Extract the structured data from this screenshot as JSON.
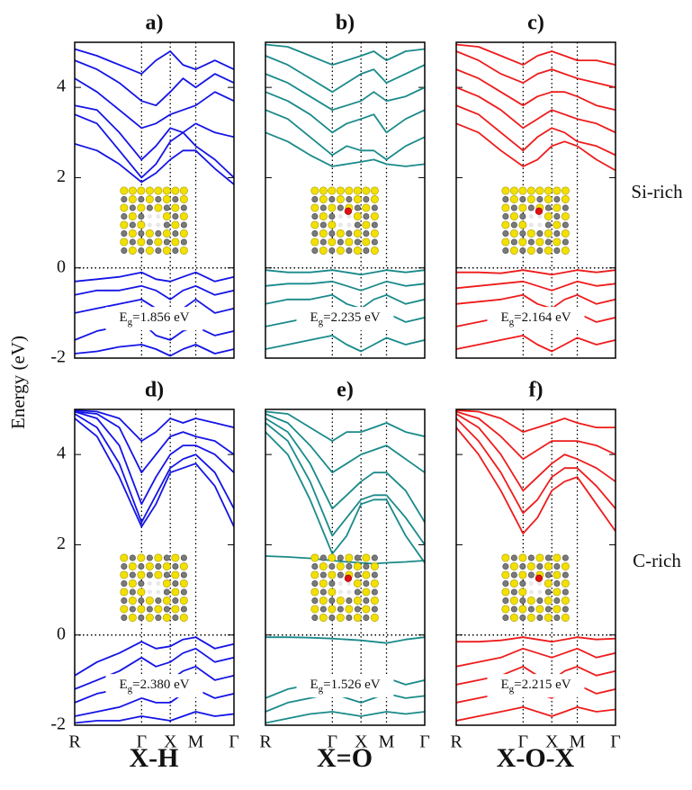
{
  "ylabel": "Energy (eV)",
  "row_labels": [
    "Si-rich",
    "C-rich"
  ],
  "column_labels": [
    "X-H",
    "X=O",
    "X-O-X"
  ],
  "chart_data": [
    {
      "type": "line",
      "title": "a)",
      "color": "#1414e6",
      "x": [
        0,
        0.14,
        0.28,
        0.42,
        0.51,
        0.6,
        0.68,
        0.76,
        0.88,
        1
      ],
      "xlim": [
        0,
        1
      ],
      "xticks": [
        0,
        0.42,
        0.6,
        0.76,
        1
      ],
      "ylim": [
        -2,
        5
      ],
      "yticks": [
        -2,
        0,
        2,
        4
      ],
      "show_ytick_labels": true,
      "hline": 0,
      "inset_oxygen": false,
      "gap_symbol": "E",
      "gap_sub": "g",
      "gap_text": "=1.856 eV",
      "series": [
        {
          "values": [
            2.75,
            2.6,
            2.3,
            1.9,
            2.1,
            2.4,
            2.6,
            2.6,
            2.2,
            1.85
          ]
        },
        {
          "values": [
            3.4,
            3.2,
            2.6,
            2.0,
            2.3,
            2.8,
            3.0,
            2.7,
            2.4,
            2.0
          ]
        },
        {
          "values": [
            3.6,
            3.5,
            3.0,
            2.4,
            2.7,
            3.1,
            3.0,
            3.2,
            3.0,
            2.9
          ]
        },
        {
          "values": [
            4.2,
            3.9,
            3.5,
            3.1,
            3.2,
            3.4,
            3.5,
            3.6,
            3.9,
            3.7
          ]
        },
        {
          "values": [
            4.6,
            4.4,
            4.1,
            3.7,
            3.6,
            3.9,
            4.2,
            4.0,
            4.3,
            4.1
          ]
        },
        {
          "values": [
            4.85,
            4.7,
            4.5,
            4.3,
            4.6,
            4.8,
            4.5,
            4.4,
            4.6,
            4.4
          ]
        },
        {
          "values": [
            -0.3,
            -0.25,
            -0.2,
            -0.1,
            -0.25,
            -0.3,
            -0.2,
            -0.1,
            -0.3,
            -0.2
          ]
        },
        {
          "values": [
            -0.6,
            -0.5,
            -0.5,
            -0.4,
            -0.5,
            -0.7,
            -0.5,
            -0.4,
            -0.6,
            -0.5
          ]
        },
        {
          "values": [
            -1.0,
            -0.9,
            -0.8,
            -0.7,
            -0.9,
            -1.1,
            -0.9,
            -0.7,
            -1.0,
            -0.9
          ]
        },
        {
          "values": [
            -1.6,
            -1.4,
            -1.3,
            -1.2,
            -1.5,
            -1.6,
            -1.4,
            -1.3,
            -1.5,
            -1.4
          ]
        },
        {
          "values": [
            -1.9,
            -1.85,
            -1.75,
            -1.7,
            -1.8,
            -1.95,
            -1.8,
            -1.7,
            -1.9,
            -1.8
          ]
        }
      ]
    },
    {
      "type": "line",
      "title": "b)",
      "color": "#1a8a8a",
      "x": [
        0,
        0.14,
        0.28,
        0.42,
        0.51,
        0.6,
        0.68,
        0.76,
        0.88,
        1
      ],
      "xlim": [
        0,
        1
      ],
      "xticks": [
        0,
        0.42,
        0.6,
        0.76,
        1
      ],
      "ylim": [
        -2,
        5
      ],
      "yticks": [
        -2,
        0,
        2,
        4
      ],
      "show_ytick_labels": false,
      "hline": 0,
      "inset_oxygen": true,
      "gap_symbol": "E",
      "gap_sub": "g",
      "gap_text": "=2.235 eV",
      "series": [
        {
          "values": [
            3.0,
            2.8,
            2.5,
            2.25,
            2.3,
            2.35,
            2.4,
            2.3,
            2.25,
            2.3
          ]
        },
        {
          "values": [
            3.5,
            3.3,
            2.9,
            2.5,
            2.7,
            2.6,
            2.6,
            2.4,
            2.7,
            2.9
          ]
        },
        {
          "values": [
            3.9,
            3.7,
            3.4,
            3.0,
            3.2,
            3.3,
            3.4,
            3.0,
            3.3,
            3.5
          ]
        },
        {
          "values": [
            4.3,
            4.1,
            3.8,
            3.5,
            3.6,
            3.7,
            3.9,
            3.7,
            3.8,
            4.0
          ]
        },
        {
          "values": [
            4.7,
            4.5,
            4.2,
            3.9,
            4.1,
            4.3,
            4.4,
            4.1,
            4.3,
            4.5
          ]
        },
        {
          "values": [
            4.95,
            4.9,
            4.7,
            4.5,
            4.6,
            4.7,
            4.8,
            4.6,
            4.8,
            4.85
          ]
        },
        {
          "values": [
            -0.05,
            -0.1,
            -0.1,
            -0.05,
            -0.1,
            -0.15,
            -0.1,
            -0.05,
            -0.1,
            -0.05
          ]
        },
        {
          "values": [
            -0.4,
            -0.35,
            -0.35,
            -0.3,
            -0.4,
            -0.5,
            -0.4,
            -0.3,
            -0.4,
            -0.35
          ]
        },
        {
          "values": [
            -0.8,
            -0.7,
            -0.7,
            -0.6,
            -0.8,
            -0.9,
            -0.7,
            -0.6,
            -0.8,
            -0.7
          ]
        },
        {
          "values": [
            -1.3,
            -1.2,
            -1.1,
            -1.0,
            -1.2,
            -1.35,
            -1.2,
            -1.0,
            -1.2,
            -1.1
          ]
        },
        {
          "values": [
            -1.8,
            -1.7,
            -1.6,
            -1.5,
            -1.7,
            -1.85,
            -1.7,
            -1.55,
            -1.7,
            -1.6
          ]
        }
      ]
    },
    {
      "type": "line",
      "title": "c)",
      "color": "#ee1c1c",
      "x": [
        0,
        0.14,
        0.28,
        0.42,
        0.51,
        0.6,
        0.68,
        0.76,
        0.88,
        1
      ],
      "xlim": [
        0,
        1
      ],
      "xticks": [
        0,
        0.42,
        0.6,
        0.76,
        1
      ],
      "ylim": [
        -2,
        5
      ],
      "yticks": [
        -2,
        0,
        2,
        4
      ],
      "show_ytick_labels": false,
      "hline": 0,
      "inset_oxygen": true,
      "gap_symbol": "E",
      "gap_sub": "g",
      "gap_text": "=2.164 eV",
      "series": [
        {
          "values": [
            3.2,
            3.0,
            2.6,
            2.25,
            2.4,
            2.7,
            2.8,
            2.7,
            2.4,
            2.16
          ]
        },
        {
          "values": [
            3.6,
            3.4,
            3.0,
            2.6,
            2.9,
            3.1,
            3.0,
            2.8,
            2.7,
            2.5
          ]
        },
        {
          "values": [
            4.0,
            3.8,
            3.5,
            3.1,
            3.3,
            3.5,
            3.4,
            3.3,
            3.2,
            3.0
          ]
        },
        {
          "values": [
            4.4,
            4.2,
            3.9,
            3.6,
            3.8,
            3.9,
            3.9,
            3.8,
            3.6,
            3.5
          ]
        },
        {
          "values": [
            4.8,
            4.6,
            4.3,
            4.1,
            4.3,
            4.4,
            4.3,
            4.2,
            4.1,
            4.0
          ]
        },
        {
          "values": [
            4.95,
            4.9,
            4.7,
            4.5,
            4.7,
            4.8,
            4.7,
            4.6,
            4.6,
            4.5
          ]
        },
        {
          "values": [
            -0.1,
            -0.1,
            -0.12,
            -0.05,
            -0.1,
            -0.15,
            -0.1,
            -0.05,
            -0.1,
            -0.05
          ]
        },
        {
          "values": [
            -0.45,
            -0.4,
            -0.35,
            -0.3,
            -0.4,
            -0.5,
            -0.4,
            -0.3,
            -0.4,
            -0.35
          ]
        },
        {
          "values": [
            -0.8,
            -0.75,
            -0.7,
            -0.6,
            -0.8,
            -0.9,
            -0.7,
            -0.6,
            -0.8,
            -0.7
          ]
        },
        {
          "values": [
            -1.3,
            -1.2,
            -1.1,
            -1.0,
            -1.2,
            -1.35,
            -1.2,
            -1.0,
            -1.2,
            -1.1
          ]
        },
        {
          "values": [
            -1.8,
            -1.7,
            -1.6,
            -1.5,
            -1.7,
            -1.85,
            -1.7,
            -1.55,
            -1.7,
            -1.6
          ]
        }
      ]
    },
    {
      "type": "line",
      "title": "d)",
      "color": "#1414e6",
      "x": [
        0,
        0.14,
        0.28,
        0.42,
        0.51,
        0.6,
        0.68,
        0.76,
        0.88,
        1
      ],
      "xlim": [
        0,
        1
      ],
      "xticks": [
        {
          "value": 0,
          "label": "R"
        },
        {
          "value": 0.42,
          "label": "Γ"
        },
        {
          "value": 0.6,
          "label": "X"
        },
        {
          "value": 0.76,
          "label": "M"
        },
        {
          "value": 1,
          "label": "Γ"
        }
      ],
      "ylim": [
        -2,
        5
      ],
      "yticks": [
        -2,
        0,
        2,
        4
      ],
      "show_ytick_labels": true,
      "hline": 0,
      "inset_oxygen": false,
      "gap_symbol": "E",
      "gap_sub": "g",
      "gap_text": "=2.380 eV",
      "series": [
        {
          "values": [
            4.8,
            4.4,
            3.5,
            2.4,
            2.9,
            3.6,
            3.7,
            3.8,
            3.3,
            2.4
          ]
        },
        {
          "values": [
            4.9,
            4.6,
            3.8,
            2.5,
            3.1,
            3.7,
            3.9,
            4.0,
            3.6,
            2.8
          ]
        },
        {
          "values": [
            4.95,
            4.8,
            4.2,
            2.9,
            3.5,
            4.0,
            4.2,
            4.2,
            4.0,
            3.6
          ]
        },
        {
          "values": [
            4.95,
            4.9,
            4.6,
            3.6,
            4.0,
            4.4,
            4.5,
            4.4,
            4.3,
            4.0
          ]
        },
        {
          "values": [
            4.98,
            4.95,
            4.8,
            4.3,
            4.5,
            4.8,
            4.7,
            4.8,
            4.7,
            4.6
          ]
        },
        {
          "values": [
            -0.9,
            -0.6,
            -0.4,
            -0.15,
            -0.3,
            -0.25,
            -0.1,
            -0.05,
            -0.3,
            -0.2
          ]
        },
        {
          "values": [
            -1.2,
            -1.0,
            -0.8,
            -0.5,
            -0.7,
            -0.6,
            -0.4,
            -0.3,
            -0.6,
            -0.5
          ]
        },
        {
          "values": [
            -1.5,
            -1.3,
            -1.2,
            -0.9,
            -1.1,
            -1.0,
            -0.8,
            -0.7,
            -1.0,
            -0.9
          ]
        },
        {
          "values": [
            -1.8,
            -1.7,
            -1.6,
            -1.4,
            -1.5,
            -1.5,
            -1.3,
            -1.2,
            -1.4,
            -1.3
          ]
        },
        {
          "values": [
            -1.95,
            -1.9,
            -1.9,
            -1.8,
            -1.85,
            -1.9,
            -1.8,
            -1.7,
            -1.8,
            -1.75
          ]
        }
      ]
    },
    {
      "type": "line",
      "title": "e)",
      "color": "#1a8a8a",
      "x": [
        0,
        0.14,
        0.28,
        0.42,
        0.51,
        0.6,
        0.68,
        0.76,
        0.88,
        1
      ],
      "xlim": [
        0,
        1
      ],
      "xticks": [
        {
          "value": 0,
          "label": "R"
        },
        {
          "value": 0.42,
          "label": "Γ"
        },
        {
          "value": 0.6,
          "label": "X"
        },
        {
          "value": 0.76,
          "label": "M"
        },
        {
          "value": 1,
          "label": "Γ"
        }
      ],
      "ylim": [
        -2,
        5
      ],
      "yticks": [
        -2,
        0,
        2,
        4
      ],
      "show_ytick_labels": false,
      "hline": 0,
      "inset_oxygen": true,
      "gap_symbol": "E",
      "gap_sub": "g",
      "gap_text": "=1.526 eV",
      "series": [
        {
          "values": [
            1.75,
            1.73,
            1.7,
            1.65,
            1.62,
            1.6,
            1.58,
            1.6,
            1.62,
            1.65
          ]
        },
        {
          "values": [
            4.5,
            4.0,
            3.0,
            1.8,
            2.2,
            2.9,
            3.0,
            3.0,
            2.2,
            1.6
          ]
        },
        {
          "values": [
            4.7,
            4.3,
            3.4,
            2.2,
            2.6,
            3.0,
            3.1,
            3.1,
            2.6,
            2.0
          ]
        },
        {
          "values": [
            4.8,
            4.5,
            3.8,
            2.8,
            3.1,
            3.4,
            3.6,
            3.6,
            3.2,
            2.5
          ]
        },
        {
          "values": [
            4.9,
            4.7,
            4.2,
            3.6,
            3.8,
            4.0,
            4.1,
            4.2,
            3.9,
            3.6
          ]
        },
        {
          "values": [
            4.95,
            4.9,
            4.6,
            4.3,
            4.5,
            4.5,
            4.6,
            4.7,
            4.5,
            4.4
          ]
        },
        {
          "values": [
            -0.05,
            -0.05,
            -0.06,
            -0.08,
            -0.1,
            -0.12,
            -0.15,
            -0.18,
            -0.1,
            -0.05
          ]
        },
        {
          "values": [
            -1.4,
            -1.2,
            -1.1,
            -0.95,
            -1.1,
            -1.2,
            -1.1,
            -0.95,
            -1.1,
            -1.0
          ]
        },
        {
          "values": [
            -1.7,
            -1.5,
            -1.4,
            -1.3,
            -1.4,
            -1.5,
            -1.4,
            -1.3,
            -1.4,
            -1.35
          ]
        },
        {
          "values": [
            -1.95,
            -1.85,
            -1.75,
            -1.7,
            -1.75,
            -1.8,
            -1.75,
            -1.7,
            -1.75,
            -1.7
          ]
        }
      ]
    },
    {
      "type": "line",
      "title": "f)",
      "color": "#ee1c1c",
      "x": [
        0,
        0.14,
        0.28,
        0.42,
        0.51,
        0.6,
        0.68,
        0.76,
        0.88,
        1
      ],
      "xlim": [
        0,
        1
      ],
      "xticks": [
        {
          "value": 0,
          "label": "R"
        },
        {
          "value": 0.42,
          "label": "Γ"
        },
        {
          "value": 0.6,
          "label": "X"
        },
        {
          "value": 0.76,
          "label": "M"
        },
        {
          "value": 1,
          "label": "Γ"
        }
      ],
      "ylim": [
        -2,
        5
      ],
      "yticks": [
        -2,
        0,
        2,
        4
      ],
      "show_ytick_labels": false,
      "hline": 0,
      "inset_oxygen": true,
      "gap_symbol": "E",
      "gap_sub": "g",
      "gap_text": "=2.215 eV",
      "series": [
        {
          "values": [
            4.6,
            4.0,
            3.2,
            2.25,
            2.6,
            3.2,
            3.4,
            3.5,
            2.9,
            2.3
          ]
        },
        {
          "values": [
            4.8,
            4.3,
            3.6,
            2.7,
            3.0,
            3.5,
            3.7,
            3.7,
            3.3,
            2.8
          ]
        },
        {
          "values": [
            4.9,
            4.6,
            4.0,
            3.2,
            3.5,
            3.8,
            4.0,
            3.9,
            3.7,
            3.4
          ]
        },
        {
          "values": [
            4.95,
            4.8,
            4.4,
            3.9,
            4.1,
            4.3,
            4.3,
            4.3,
            4.2,
            4.0
          ]
        },
        {
          "values": [
            4.98,
            4.95,
            4.8,
            4.5,
            4.6,
            4.7,
            4.8,
            4.7,
            4.6,
            4.6
          ]
        },
        {
          "values": [
            -0.15,
            -0.15,
            -0.12,
            -0.05,
            -0.1,
            -0.15,
            -0.1,
            -0.05,
            -0.1,
            -0.08
          ]
        },
        {
          "values": [
            -0.7,
            -0.6,
            -0.5,
            -0.3,
            -0.4,
            -0.5,
            -0.4,
            -0.3,
            -0.5,
            -0.4
          ]
        },
        {
          "values": [
            -1.1,
            -1.0,
            -0.9,
            -0.7,
            -0.9,
            -1.0,
            -0.8,
            -0.7,
            -0.9,
            -0.8
          ]
        },
        {
          "values": [
            -1.5,
            -1.4,
            -1.3,
            -1.1,
            -1.3,
            -1.4,
            -1.2,
            -1.1,
            -1.3,
            -1.2
          ]
        },
        {
          "values": [
            -1.9,
            -1.8,
            -1.7,
            -1.6,
            -1.7,
            -1.8,
            -1.7,
            -1.6,
            -1.7,
            -1.65
          ]
        }
      ]
    }
  ]
}
